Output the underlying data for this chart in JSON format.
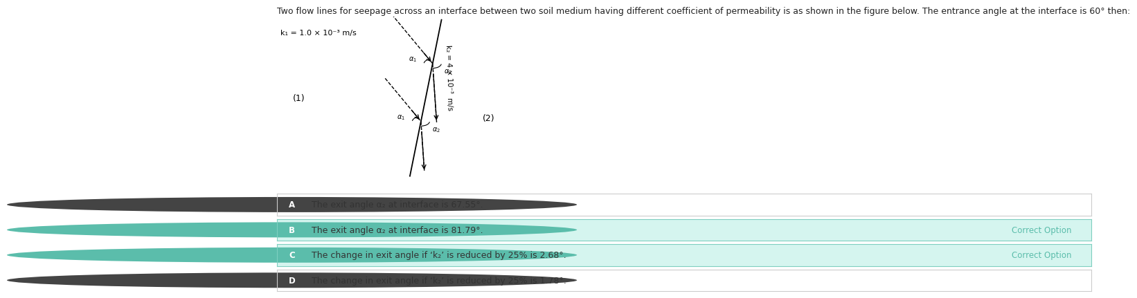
{
  "title": "Two flow lines for seepage across an interface between two soil medium having different coefficient of permeability is as shown in the figure below. The entrance angle at the interface is 60° then:",
  "title_fontsize": 9,
  "k1_label": "k₁ = 1.0 × 10⁻³ m/s",
  "k2_label_line1": "k₂ = 4 × 10⁻³",
  "k2_label_line2": "m/s",
  "label_1": "(1)",
  "label_2": "(2)",
  "options": [
    {
      "letter": "A",
      "text": "The exit angle α₂ at interface is 67.55°.",
      "correct": false,
      "bg_color": "#ffffff",
      "border_color": "#cccccc"
    },
    {
      "letter": "B",
      "text": "The exit angle α₂ at interface is 81.79°.",
      "correct": true,
      "bg_color": "#d5f5ef",
      "border_color": "#7ecfc0"
    },
    {
      "letter": "C",
      "text": "The change in exit angle if ‘k₂’ is reduced by 25% is 2.68°.",
      "correct": true,
      "bg_color": "#d5f5ef",
      "border_color": "#7ecfc0"
    },
    {
      "letter": "D",
      "text": "The change in exit angle if ‘k₂’ is reduced by 25% is 1.78°.",
      "correct": false,
      "bg_color": "#ffffff",
      "border_color": "#cccccc"
    }
  ],
  "correct_label": "Correct Option",
  "correct_label_color": "#5bbdab",
  "option_letter_bg_correct": "#5bbdab",
  "option_letter_bg_incorrect": "#444444",
  "option_letter_color": "#ffffff",
  "option_text_color": "#333333",
  "bg_color": "#ffffff"
}
